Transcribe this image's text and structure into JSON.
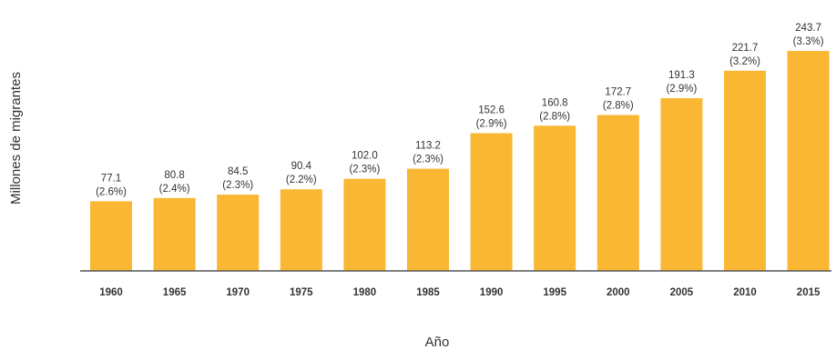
{
  "chart_data": {
    "type": "bar",
    "categories": [
      "1960",
      "1965",
      "1970",
      "1975",
      "1980",
      "1985",
      "1990",
      "1995",
      "2000",
      "2005",
      "2010",
      "2015"
    ],
    "values": [
      77.1,
      80.8,
      84.5,
      90.4,
      102.0,
      113.2,
      152.6,
      160.8,
      172.7,
      191.3,
      221.7,
      243.7
    ],
    "value_labels": [
      "77.1",
      "80.8",
      "84.5",
      "90.4",
      "102.0",
      "113.2",
      "152.6",
      "160.8",
      "172.7",
      "191.3",
      "221.7",
      "243.7"
    ],
    "percent_labels": [
      "(2.6%)",
      "(2.4%)",
      "(2.3%)",
      "(2.2%)",
      "(2.3%)",
      "(2.3%)",
      "(2.9%)",
      "(2.8%)",
      "(2.8%)",
      "(2.9%)",
      "(3.2%)",
      "(3.3%)"
    ],
    "xlabel": "Año",
    "ylabel": "Millones de migrantes",
    "ylim": [
      0,
      250
    ],
    "grid": false,
    "colors": {
      "bar": "#F9B733",
      "axis": "#555555"
    }
  }
}
